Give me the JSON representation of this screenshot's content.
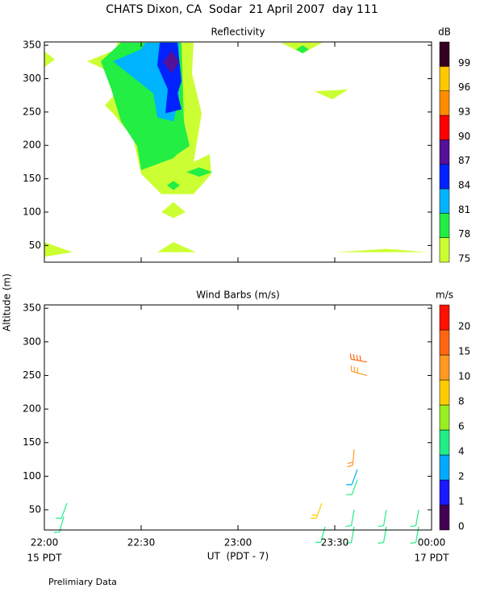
{
  "title": "CHATS Dixon, CA  Sodar  21 April 2007  day 111",
  "ylabel": "Altitude (m)",
  "xlabel": "UT  (PDT - 7)",
  "x_left_note": "15 PDT",
  "x_right_note": "17 PDT",
  "footer": "Prelimiary Data",
  "chart_data": [
    {
      "type": "contour",
      "title": "Reflectivity",
      "colorbar_title": "dB",
      "xlim": [
        0,
        120
      ],
      "ylim": [
        25,
        355
      ],
      "yticks": [
        50,
        100,
        150,
        200,
        250,
        300,
        350
      ],
      "xticks": [
        {
          "value": 0,
          "label": "22:00"
        },
        {
          "value": 30,
          "label": "22:30"
        },
        {
          "value": 60,
          "label": "23:00"
        },
        {
          "value": 90,
          "label": "23:30"
        },
        {
          "value": 120,
          "label": "00:00"
        }
      ],
      "levels": [
        75,
        78,
        81,
        84,
        87,
        90,
        93,
        96,
        99
      ],
      "colors": [
        "#ccff33",
        "#22ee44",
        "#00b4ff",
        "#0022ff",
        "#55119a",
        "#ff0000",
        "#ff8c00",
        "#ffc800",
        "#330022"
      ],
      "regions": [
        {
          "level": 75,
          "points": [
            [
              22.5,
              354
            ],
            [
              46.25,
              354
            ],
            [
              45.75,
              308
            ],
            [
              48.75,
              248
            ],
            [
              46.25,
              175
            ],
            [
              51.25,
              187
            ],
            [
              51.75,
              157
            ],
            [
              46.25,
              127
            ],
            [
              36.25,
              127
            ],
            [
              30,
              157
            ],
            [
              27.5,
              211
            ],
            [
              21.25,
              248
            ],
            [
              18.75,
              260
            ],
            [
              23.25,
              284
            ],
            [
              21.25,
              308
            ],
            [
              13.25,
              326
            ],
            [
              22.5,
              344
            ]
          ]
        },
        {
          "level": 75,
          "points": [
            [
              0,
              341
            ],
            [
              3.25,
              329
            ],
            [
              0,
              317
            ]
          ]
        },
        {
          "level": 75,
          "points": [
            [
              0,
              55
            ],
            [
              8.75,
              40
            ],
            [
              0,
              33
            ]
          ]
        },
        {
          "level": 75,
          "points": [
            [
              35,
              40
            ],
            [
              40,
              55
            ],
            [
              47,
              40
            ]
          ]
        },
        {
          "level": 75,
          "points": [
            [
              36.25,
              100
            ],
            [
              40,
              115
            ],
            [
              43.75,
              100
            ],
            [
              40,
              91
            ]
          ]
        },
        {
          "level": 75,
          "points": [
            [
              90,
              40
            ],
            [
              106,
              45
            ],
            [
              118.75,
              40
            ]
          ]
        },
        {
          "level": 75,
          "points": [
            [
              73.25,
              354
            ],
            [
              86.25,
              354
            ],
            [
              80,
              338
            ]
          ]
        },
        {
          "level": 75,
          "points": [
            [
              83.75,
              281
            ],
            [
              94.25,
              284
            ],
            [
              89.25,
              269
            ]
          ]
        },
        {
          "level": 78,
          "points": [
            [
              23.75,
              354
            ],
            [
              42.5,
              354
            ],
            [
              43.25,
              236
            ],
            [
              45,
              199
            ],
            [
              41.25,
              187
            ],
            [
              40,
              181
            ],
            [
              30,
              163
            ],
            [
              28.75,
              199
            ],
            [
              23.75,
              236
            ],
            [
              20.75,
              284
            ],
            [
              17.5,
              326
            ]
          ]
        },
        {
          "level": 78,
          "points": [
            [
              44,
              160
            ],
            [
              48,
              167
            ],
            [
              52,
              160
            ],
            [
              48,
              153
            ]
          ]
        },
        {
          "level": 78,
          "points": [
            [
              38,
              140
            ],
            [
              40,
              147
            ],
            [
              42,
              140
            ],
            [
              40,
              133
            ]
          ]
        },
        {
          "level": 78,
          "points": [
            [
              78,
              344
            ],
            [
              80,
              350
            ],
            [
              82,
              344
            ],
            [
              80,
              338
            ]
          ]
        },
        {
          "level": 81,
          "points": [
            [
              31.25,
              354
            ],
            [
              41.75,
              354
            ],
            [
              41.75,
              272
            ],
            [
              40,
              236
            ],
            [
              35,
              242
            ],
            [
              33.75,
              278
            ],
            [
              21.25,
              326
            ],
            [
              30,
              344
            ]
          ]
        },
        {
          "level": 84,
          "points": [
            [
              35.75,
              354
            ],
            [
              41.25,
              354
            ],
            [
              42.5,
              296
            ],
            [
              41.25,
              278
            ],
            [
              42.5,
              254
            ],
            [
              37.5,
              248
            ],
            [
              38.25,
              284
            ],
            [
              35,
              320
            ]
          ]
        },
        {
          "level": 87,
          "points": [
            [
              39.5,
              342
            ],
            [
              41.75,
              325
            ],
            [
              39.5,
              308
            ],
            [
              36.75,
              325
            ]
          ]
        }
      ]
    },
    {
      "type": "wind_barbs",
      "title": "Wind Barbs (m/s)",
      "colorbar_title": "m/s",
      "xlim": [
        0,
        120
      ],
      "ylim": [
        20,
        355
      ],
      "yticks": [
        50,
        100,
        150,
        200,
        250,
        300,
        350
      ],
      "xticks": [
        {
          "value": 0,
          "label": "22:00"
        },
        {
          "value": 30,
          "label": "22:30"
        },
        {
          "value": 60,
          "label": "23:00"
        },
        {
          "value": 90,
          "label": "23:30"
        },
        {
          "value": 120,
          "label": "00:00"
        }
      ],
      "levels": [
        0,
        1,
        2,
        4,
        6,
        8,
        10,
        15,
        20
      ],
      "colors": [
        "#440055",
        "#1a1aff",
        "#00aaff",
        "#22ee88",
        "#99ee22",
        "#ffcc00",
        "#ff9922",
        "#ff6611",
        "#ff1100"
      ],
      "barbs": [
        {
          "x": 7,
          "altitude": 60,
          "speed": 5,
          "direction": 200
        },
        {
          "x": 6,
          "altitude": 40,
          "speed": 4,
          "direction": 195
        },
        {
          "x": 86,
          "altitude": 60,
          "speed": 9,
          "direction": 200
        },
        {
          "x": 87,
          "altitude": 25,
          "speed": 5,
          "direction": 195
        },
        {
          "x": 96,
          "altitude": 140,
          "speed": 12,
          "direction": 185
        },
        {
          "x": 97,
          "altitude": 110,
          "speed": 3,
          "direction": 200
        },
        {
          "x": 97,
          "altitude": 95,
          "speed": 5,
          "direction": 200
        },
        {
          "x": 96,
          "altitude": 50,
          "speed": 5,
          "direction": 190
        },
        {
          "x": 96,
          "altitude": 25,
          "speed": 5,
          "direction": 190
        },
        {
          "x": 100,
          "altitude": 270,
          "speed": 18,
          "direction": 280
        },
        {
          "x": 100,
          "altitude": 250,
          "speed": 14,
          "direction": 285
        },
        {
          "x": 106,
          "altitude": 50,
          "speed": 5,
          "direction": 190
        },
        {
          "x": 106,
          "altitude": 25,
          "speed": 5,
          "direction": 190
        },
        {
          "x": 116,
          "altitude": 50,
          "speed": 5,
          "direction": 190
        },
        {
          "x": 116,
          "altitude": 25,
          "speed": 5,
          "direction": 190
        }
      ]
    }
  ]
}
